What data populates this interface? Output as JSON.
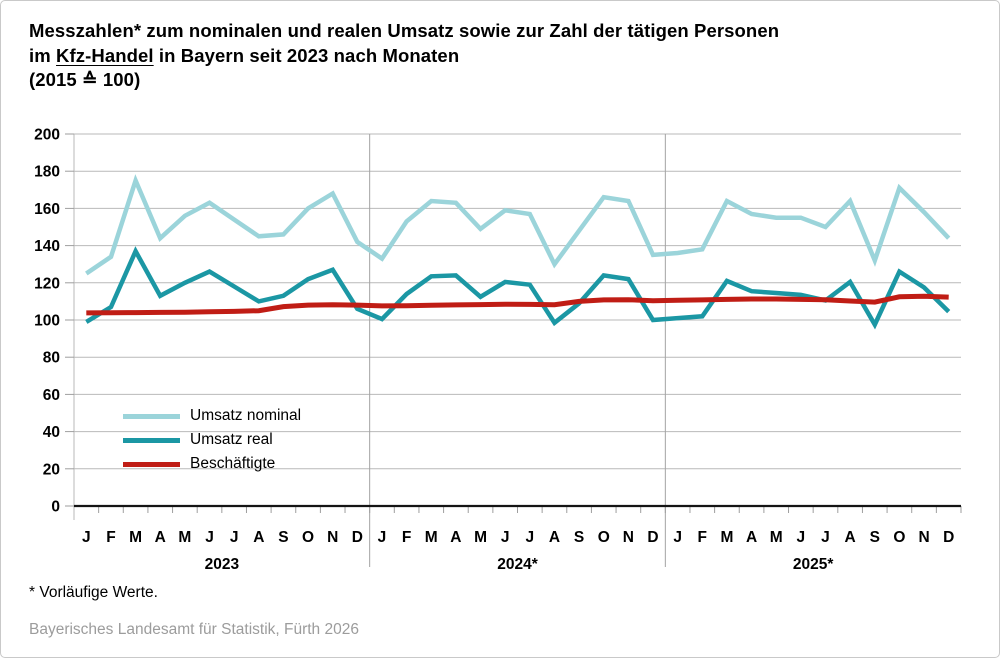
{
  "title": {
    "line1": "Messzahlen* zum nominalen und realen Umsatz sowie zur Zahl der tätigen Personen",
    "line2_prefix": "im ",
    "line2_underline": "Kfz-Handel",
    "line2_suffix": " in Bayern seit 2023 nach Monaten",
    "line3": "(2015 ≙ 100)"
  },
  "footnote": "* Vorläufige Werte.",
  "source": "Bayerisches Landesamt für Statistik, Fürth 2026",
  "chart_data": {
    "type": "line",
    "title": "Messzahlen zum nominalen und realen Umsatz sowie zur Zahl der tätigen Personen im Kfz-Handel in Bayern seit 2023 nach Monaten (2015 ≙ 100)",
    "y_axis": {
      "min": 0,
      "max": 200,
      "step": 20
    },
    "x_axis": {
      "month_labels": [
        "J",
        "F",
        "M",
        "A",
        "M",
        "J",
        "J",
        "A",
        "S",
        "O",
        "N",
        "D"
      ],
      "year_labels": [
        "2023",
        "2024*",
        "2025*"
      ]
    },
    "grid": true,
    "legend_position": "inside-left-bottom",
    "series": [
      {
        "key": "umsatz-nominal",
        "name": "Umsatz nominal",
        "color": "#9bd4da",
        "values": [
          125,
          134,
          175,
          144,
          156,
          163,
          154,
          145,
          146,
          160,
          168,
          142,
          133,
          153,
          164,
          163,
          149,
          159,
          157,
          130,
          148,
          166,
          164,
          135,
          136,
          138,
          164,
          157,
          155,
          155,
          150,
          164,
          132,
          171,
          158,
          144
        ]
      },
      {
        "key": "umsatz-real",
        "name": "Umsatz real",
        "color": "#1b97a4",
        "values": [
          99,
          107,
          137,
          113,
          120,
          126,
          118,
          110,
          113,
          122,
          127,
          106,
          100.5,
          114,
          123.5,
          124,
          112.5,
          120.5,
          119,
          98.5,
          109,
          124,
          122,
          100,
          101,
          102,
          121,
          115.5,
          114.5,
          113.5,
          110.5,
          120.5,
          97.5,
          126,
          117.5,
          104.5
        ]
      },
      {
        "key": "beschaeftigte",
        "name": "Beschäftigte",
        "color": "#c01d15",
        "values": [
          103.8,
          103.9,
          104,
          104.1,
          104.2,
          104.4,
          104.6,
          105,
          107.2,
          108,
          108.2,
          108,
          107.6,
          107.7,
          107.9,
          108.1,
          108.3,
          108.5,
          108.4,
          108.2,
          110,
          110.8,
          110.9,
          110.4,
          110.6,
          110.8,
          111.1,
          111.3,
          111.3,
          111.1,
          110.9,
          110.2,
          109.6,
          112.5,
          112.8,
          112.3
        ]
      }
    ]
  }
}
